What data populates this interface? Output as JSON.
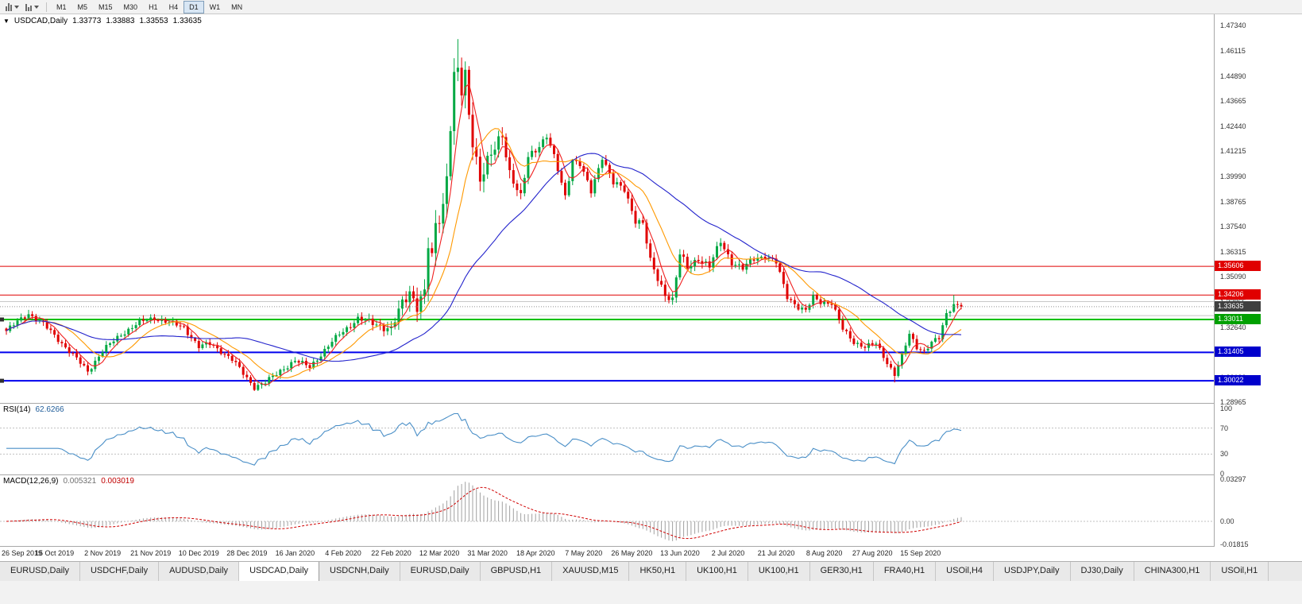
{
  "toolbar": {
    "timeframes": [
      "M1",
      "M5",
      "M15",
      "M30",
      "H1",
      "H4",
      "D1",
      "W1",
      "MN"
    ],
    "active_timeframe": "D1"
  },
  "header": {
    "symbol": "USDCAD,Daily",
    "open": "1.33773",
    "high": "1.33883",
    "low": "1.33553",
    "close": "1.33635"
  },
  "price_axis": {
    "ticks": [
      "1.47340",
      "1.46115",
      "1.44890",
      "1.43665",
      "1.42440",
      "1.41215",
      "1.39990",
      "1.38765",
      "1.37540",
      "1.36315",
      "1.35090",
      "1.33865",
      "1.32640",
      "1.31415",
      "1.30190",
      "1.28965"
    ]
  },
  "badges": [
    {
      "text": "1.35606",
      "price": 1.35606,
      "bg": "#e00000"
    },
    {
      "text": "1.34206",
      "price": 1.34206,
      "bg": "#e00000"
    },
    {
      "text": "1.33635",
      "price": 1.33635,
      "bg": "#3f3f3f"
    },
    {
      "text": "1.33011",
      "price": 1.33011,
      "bg": "#00a000"
    },
    {
      "text": "1.31405",
      "price": 1.31405,
      "bg": "#0000cc"
    },
    {
      "text": "1.30022",
      "price": 1.30022,
      "bg": "#0000cc"
    }
  ],
  "levels": [
    {
      "price": 1.35606,
      "color": "#e00000",
      "w": 1
    },
    {
      "price": 1.34206,
      "color": "#e00000",
      "w": 1
    },
    {
      "price": 1.33883,
      "color": "#c8c8c8",
      "w": 1
    },
    {
      "price": 1.332,
      "color": "#c8c8c8",
      "w": 1
    },
    {
      "price": 1.33011,
      "color": "#00c000",
      "w": 2
    },
    {
      "price": 1.31405,
      "color": "#0000ee",
      "w": 2
    },
    {
      "price": 1.30022,
      "color": "#0000ee",
      "w": 2
    }
  ],
  "current_price_line": {
    "price": 1.33635,
    "color": "#909090"
  },
  "handles": [
    1.33011,
    1.30022
  ],
  "rsi": {
    "name": "RSI(14)",
    "value": "62.6266",
    "color": "#4a8fc7",
    "levels": [
      {
        "v": 100,
        "label": "100"
      },
      {
        "v": 70,
        "label": "70"
      },
      {
        "v": 30,
        "label": "30"
      },
      {
        "v": 0,
        "label": "0"
      }
    ],
    "dashed_levels": [
      70,
      30
    ],
    "ylim": [
      -2.5,
      107.3
    ]
  },
  "macd": {
    "name": "MACD(12,26,9)",
    "main_value": "0.005321",
    "signal_value": "0.003019",
    "hist_color": "#a0a0a0",
    "signal_color": "#d00000",
    "ticks": [
      {
        "v": 0.03297,
        "label": "0.03297"
      },
      {
        "v": 0,
        "label": "0.00"
      },
      {
        "v": -0.01815,
        "label": "-0.01815"
      }
    ],
    "ylim": [
      -0.0199,
      0.0361
    ]
  },
  "time_axis": {
    "labels": [
      {
        "day": 0,
        "text": "26 Sep 2019"
      },
      {
        "day": 13,
        "text": "15 Oct 2019"
      },
      {
        "day": 26,
        "text": "2 Nov 2019"
      },
      {
        "day": 39,
        "text": "21 Nov 2019"
      },
      {
        "day": 52,
        "text": "10 Dec 2019"
      },
      {
        "day": 65,
        "text": "28 Dec 2019"
      },
      {
        "day": 78,
        "text": "16 Jan 2020"
      },
      {
        "day": 91,
        "text": "4 Feb 2020"
      },
      {
        "day": 104,
        "text": "22 Feb 2020"
      },
      {
        "day": 117,
        "text": "12 Mar 2020"
      },
      {
        "day": 130,
        "text": "31 Mar 2020"
      },
      {
        "day": 143,
        "text": "18 Apr 2020"
      },
      {
        "day": 156,
        "text": "7 May 2020"
      },
      {
        "day": 169,
        "text": "26 May 2020"
      },
      {
        "day": 182,
        "text": "13 Jun 2020"
      },
      {
        "day": 195,
        "text": "2 Jul 2020"
      },
      {
        "day": 208,
        "text": "21 Jul 2020"
      },
      {
        "day": 221,
        "text": "8 Aug 2020"
      },
      {
        "day": 234,
        "text": "27 Aug 2020"
      },
      {
        "day": 247,
        "text": "15 Sep 2020"
      }
    ]
  },
  "tabs": {
    "items": [
      "EURUSD,Daily",
      "USDCHF,Daily",
      "AUDUSD,Daily",
      "USDCAD,Daily",
      "USDCNH,Daily",
      "EURUSD,Daily",
      "GBPUSD,H1",
      "XAUUSD,M15",
      "HK50,H1",
      "UK100,H1",
      "UK100,H1",
      "GER30,H1",
      "FRA40,H1",
      "USOil,H4",
      "USDJPY,Daily",
      "DJ30,Daily",
      "CHINA300,H1",
      "USOil,H1"
    ],
    "active_index": 3
  },
  "chart_data": {
    "type": "candlestick",
    "symbol": "USDCAD",
    "timeframe": "Daily",
    "days": 259,
    "ylim": [
      1.289,
      1.479
    ],
    "colors": {
      "bull": "#00a843",
      "bear": "#e00000"
    },
    "ohlc_current": {
      "open": 1.33773,
      "high": 1.33883,
      "low": 1.33553,
      "close": 1.33635
    },
    "anchors": [
      [
        0,
        1.3245
      ],
      [
        3,
        1.329
      ],
      [
        6,
        1.333
      ],
      [
        10,
        1.3278
      ],
      [
        14,
        1.3205
      ],
      [
        18,
        1.3128
      ],
      [
        22,
        1.3048
      ],
      [
        26,
        1.3148
      ],
      [
        31,
        1.3228
      ],
      [
        36,
        1.3288
      ],
      [
        40,
        1.3308
      ],
      [
        44,
        1.3286
      ],
      [
        48,
        1.3262
      ],
      [
        52,
        1.3168
      ],
      [
        55,
        1.3182
      ],
      [
        58,
        1.3148
      ],
      [
        61,
        1.3105
      ],
      [
        64,
        1.3038
      ],
      [
        67,
        1.2972
      ],
      [
        70,
        1.2992
      ],
      [
        74,
        1.3052
      ],
      [
        78,
        1.3098
      ],
      [
        82,
        1.3072
      ],
      [
        86,
        1.3148
      ],
      [
        90,
        1.3232
      ],
      [
        95,
        1.3302
      ],
      [
        100,
        1.3282
      ],
      [
        104,
        1.3248
      ],
      [
        107,
        1.3382
      ],
      [
        109,
        1.3442
      ],
      [
        111,
        1.3372
      ],
      [
        113,
        1.3422
      ],
      [
        114,
        1.3658
      ],
      [
        115,
        1.3592
      ],
      [
        116,
        1.3762
      ],
      [
        118,
        1.3862
      ],
      [
        119,
        1.4012
      ],
      [
        120,
        1.4255
      ],
      [
        121,
        1.4472
      ],
      [
        122,
        1.4508
      ],
      [
        123,
        1.4402
      ],
      [
        124,
        1.4482
      ],
      [
        125,
        1.4308
      ],
      [
        126,
        1.4182
      ],
      [
        128,
        1.3992
      ],
      [
        130,
        1.4062
      ],
      [
        132,
        1.4132
      ],
      [
        134,
        1.4208
      ],
      [
        136,
        1.4022
      ],
      [
        139,
        1.3892
      ],
      [
        141,
        1.4092
      ],
      [
        144,
        1.4152
      ],
      [
        146,
        1.4198
      ],
      [
        148,
        1.4092
      ],
      [
        151,
        1.3902
      ],
      [
        153,
        1.4082
      ],
      [
        155,
        1.4058
      ],
      [
        158,
        1.3922
      ],
      [
        161,
        1.4098
      ],
      [
        164,
        1.3968
      ],
      [
        167,
        1.3932
      ],
      [
        170,
        1.3788
      ],
      [
        172,
        1.3772
      ],
      [
        174,
        1.3582
      ],
      [
        176,
        1.3498
      ],
      [
        178,
        1.3428
      ],
      [
        180,
        1.3398
      ],
      [
        182,
        1.3618
      ],
      [
        184,
        1.3552
      ],
      [
        187,
        1.3602
      ],
      [
        190,
        1.3558
      ],
      [
        193,
        1.3682
      ],
      [
        196,
        1.3582
      ],
      [
        199,
        1.3548
      ],
      [
        202,
        1.3598
      ],
      [
        205,
        1.3612
      ],
      [
        208,
        1.3578
      ],
      [
        211,
        1.3412
      ],
      [
        214,
        1.3362
      ],
      [
        216,
        1.3342
      ],
      [
        218,
        1.3408
      ],
      [
        220,
        1.3388
      ],
      [
        223,
        1.3382
      ],
      [
        226,
        1.3252
      ],
      [
        229,
        1.3192
      ],
      [
        232,
        1.3168
      ],
      [
        235,
        1.3182
      ],
      [
        238,
        1.3092
      ],
      [
        240,
        1.3035
      ],
      [
        242,
        1.3122
      ],
      [
        244,
        1.3228
      ],
      [
        246,
        1.3168
      ],
      [
        248,
        1.3148
      ],
      [
        250,
        1.3188
      ],
      [
        252,
        1.3208
      ],
      [
        254,
        1.3328
      ],
      [
        256,
        1.3378
      ],
      [
        258,
        1.33635
      ]
    ],
    "wick_overrides": {
      "6": {
        "h": 1.3348
      },
      "67": {
        "l": 1.2952
      },
      "109": {
        "h": 1.3465
      },
      "122": {
        "h": 1.4669
      },
      "124": {
        "h": 1.456
      },
      "240": {
        "l": 1.2994
      },
      "256": {
        "h": 1.342
      }
    },
    "mas": [
      {
        "period": 5,
        "color": "#f02020"
      },
      {
        "period": 13,
        "color": "#ff9900"
      },
      {
        "period": 40,
        "color": "#2222cc"
      }
    ],
    "indicators": [
      {
        "name": "RSI",
        "period": 14,
        "value": 62.6266
      },
      {
        "name": "MACD",
        "fast": 12,
        "slow": 26,
        "signal": 9,
        "value": 0.005321,
        "signal_value": 0.003019
      }
    ]
  }
}
